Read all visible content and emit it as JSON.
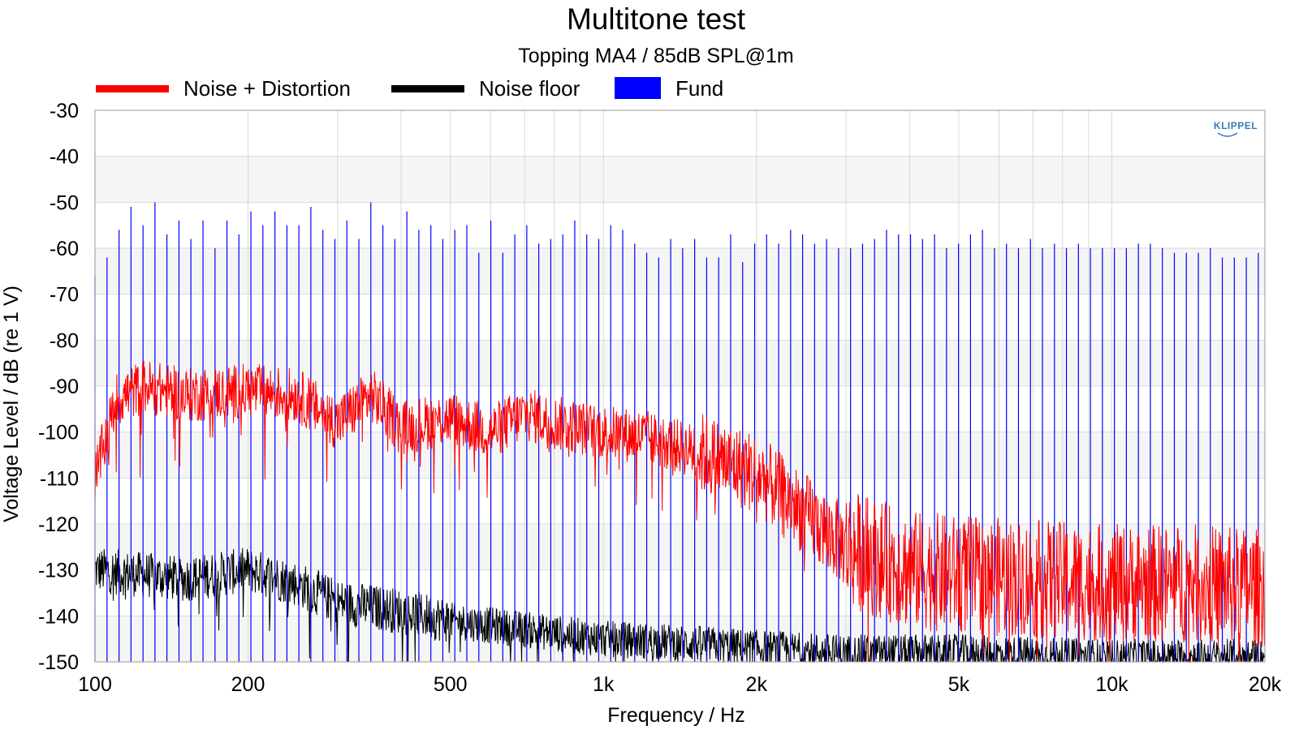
{
  "chart_data": {
    "type": "line",
    "title": "Multitone test",
    "subtitle": "Topping MA4 / 85dB SPL@1m",
    "xlabel": "Frequency / Hz",
    "ylabel": "Voltage Level / dB (re 1 V)",
    "x_scale": "log",
    "xlim": [
      100,
      20000
    ],
    "ylim": [
      -150,
      -30
    ],
    "x_ticks": [
      100,
      200,
      500,
      1000,
      2000,
      5000,
      10000,
      20000
    ],
    "x_tick_labels": [
      "100",
      "200",
      "500",
      "1k",
      "2k",
      "5k",
      "10k",
      "20k"
    ],
    "y_ticks": [
      -30,
      -40,
      -50,
      -60,
      -70,
      -80,
      -90,
      -100,
      -110,
      -120,
      -130,
      -140,
      -150
    ],
    "y_tick_labels": [
      "-30",
      "-40",
      "-50",
      "-60",
      "-70",
      "-80",
      "-90",
      "-100",
      "-110",
      "-120",
      "-130",
      "-140",
      "-150"
    ],
    "grid": true,
    "legend_position": "top",
    "series": [
      {
        "name": "Noise + Distortion",
        "color": "#ff0000",
        "style": "line",
        "envelope": {
          "x": [
            100,
            110,
            125,
            150,
            200,
            250,
            300,
            350,
            400,
            500,
            600,
            700,
            800,
            1000,
            1200,
            1500,
            2000,
            2500,
            3000,
            4000,
            5000,
            7000,
            10000,
            15000,
            20000
          ],
          "y": [
            -110,
            -93,
            -90,
            -92,
            -91,
            -92,
            -98,
            -92,
            -99,
            -97,
            -100,
            -96,
            -98,
            -100,
            -101,
            -104,
            -109,
            -118,
            -125,
            -130,
            -131,
            -132,
            -133,
            -133,
            -134
          ]
        }
      },
      {
        "name": "Noise floor",
        "color": "#000000",
        "style": "line",
        "envelope": {
          "x": [
            100,
            150,
            200,
            250,
            300,
            400,
            500,
            700,
            1000,
            1500,
            2000,
            3000,
            5000,
            10000,
            20000
          ],
          "y": [
            -130,
            -132,
            -130,
            -133,
            -137,
            -139,
            -141,
            -143,
            -145,
            -146,
            -147,
            -148,
            -148,
            -149,
            -149
          ]
        }
      },
      {
        "name": "Fund",
        "color": "#0000ff",
        "style": "impulse",
        "x": [
          100,
          105.6,
          111.5,
          117.7,
          124.3,
          131.2,
          138.5,
          146.3,
          154.4,
          163.1,
          172.2,
          181.8,
          191.9,
          202.6,
          213.9,
          225.9,
          238.5,
          251.8,
          265.8,
          280.7,
          296.4,
          312.9,
          330.4,
          348.8,
          368.3,
          388.8,
          410.6,
          433.5,
          457.7,
          483.2,
          510.2,
          538.7,
          568.8,
          600.5,
          634.0,
          669.4,
          706.8,
          746.2,
          787.9,
          831.9,
          878.3,
          927.3,
          979.1,
          1033.7,
          1091.4,
          1152.3,
          1216.6,
          1284.5,
          1356.2,
          1431.9,
          1511.8,
          1596.2,
          1685.3,
          1779.3,
          1878.6,
          1983.5,
          2094.2,
          2211.1,
          2334.5,
          2464.8,
          2602.3,
          2747.6,
          2900.9,
          3062.8,
          3233.8,
          3414.2,
          3604.8,
          3806.0,
          4018.4,
          4242.7,
          4479.5,
          4729.4,
          4993.4,
          5272.1,
          5566.3,
          5877.0,
          6205.0,
          6551.3,
          6916.9,
          7302.9,
          7710.5,
          8140.8,
          8595.2,
          9074.9,
          9581.3,
          10116.1,
          10680.6,
          11276.7,
          11906.1,
          12570.5,
          13272.1,
          14012.8,
          14794.8,
          15620.5,
          16492.3,
          17412.7,
          18384.5,
          19410.5
        ],
        "y": [
          -66,
          -62,
          -56,
          -51,
          -55,
          -50,
          -57,
          -54,
          -58,
          -54,
          -60,
          -54,
          -57,
          -52,
          -55,
          -52,
          -55,
          -55,
          -51,
          -56,
          -58,
          -54,
          -58,
          -50,
          -55,
          -58,
          -52,
          -56,
          -55,
          -58,
          -56,
          -55,
          -61,
          -54,
          -61,
          -57,
          -55,
          -59,
          -58,
          -57,
          -54,
          -57,
          -58,
          -55,
          -56,
          -59,
          -61,
          -62,
          -58,
          -60,
          -58,
          -62,
          -62,
          -57,
          -63,
          -59,
          -57,
          -59,
          -56,
          -57,
          -59,
          -58,
          -60,
          -60,
          -59,
          -58,
          -56,
          -57,
          -57,
          -58,
          -57,
          -60,
          -59,
          -57,
          -56,
          -60,
          -59,
          -60,
          -58,
          -60,
          -59,
          -60,
          -59,
          -60,
          -60,
          -60,
          -60,
          -59,
          -59,
          -60,
          -61,
          -61,
          -61,
          -60,
          -62,
          -62,
          -62,
          -61
        ]
      }
    ]
  },
  "branding": {
    "logo": "KLIPPEL"
  },
  "colors": {
    "grid": "#d9d9d9",
    "band": "#f5f5f5",
    "axis": "#999999",
    "noise_distortion": "#ff0000",
    "noise_floor": "#000000",
    "fund": "#0000ff",
    "logo": "#3a7ab5"
  }
}
